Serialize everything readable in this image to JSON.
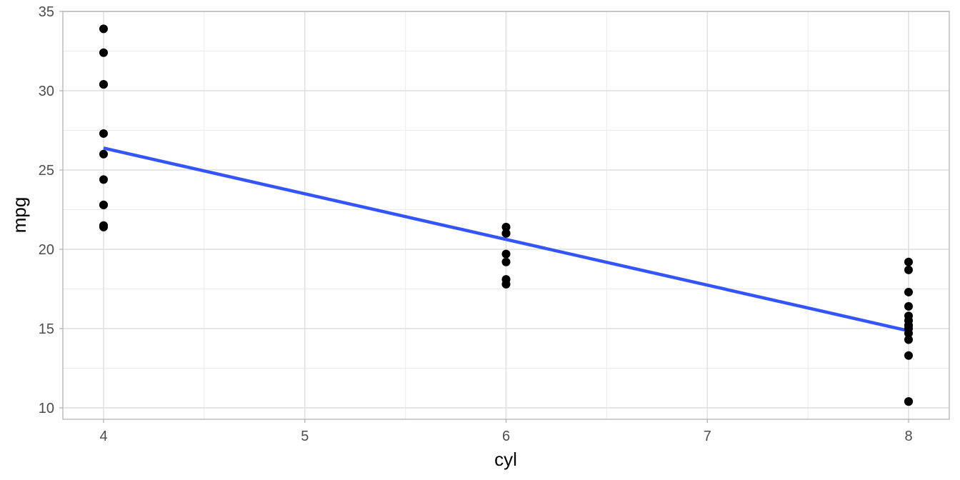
{
  "chart_data": {
    "type": "scatter",
    "title": "",
    "xlabel": "cyl",
    "ylabel": "mpg",
    "xlim": [
      3.8,
      8.2
    ],
    "ylim": [
      9.2,
      35.1
    ],
    "x_ticks": [
      4,
      5,
      6,
      7,
      8
    ],
    "y_ticks": [
      10,
      15,
      20,
      25,
      30,
      35
    ],
    "grid": true,
    "legend": "none",
    "theme": "light",
    "points": [
      {
        "x": 4,
        "y": 33.9
      },
      {
        "x": 4,
        "y": 32.4
      },
      {
        "x": 4,
        "y": 30.4
      },
      {
        "x": 4,
        "y": 30.4
      },
      {
        "x": 4,
        "y": 27.3
      },
      {
        "x": 4,
        "y": 26.0
      },
      {
        "x": 4,
        "y": 24.4
      },
      {
        "x": 4,
        "y": 22.8
      },
      {
        "x": 4,
        "y": 22.8
      },
      {
        "x": 4,
        "y": 21.5
      },
      {
        "x": 4,
        "y": 21.4
      },
      {
        "x": 6,
        "y": 21.4
      },
      {
        "x": 6,
        "y": 21.0
      },
      {
        "x": 6,
        "y": 21.0
      },
      {
        "x": 6,
        "y": 19.7
      },
      {
        "x": 6,
        "y": 19.2
      },
      {
        "x": 6,
        "y": 18.1
      },
      {
        "x": 6,
        "y": 17.8
      },
      {
        "x": 8,
        "y": 19.2
      },
      {
        "x": 8,
        "y": 18.7
      },
      {
        "x": 8,
        "y": 17.3
      },
      {
        "x": 8,
        "y": 16.4
      },
      {
        "x": 8,
        "y": 15.8
      },
      {
        "x": 8,
        "y": 15.5
      },
      {
        "x": 8,
        "y": 15.2
      },
      {
        "x": 8,
        "y": 15.2
      },
      {
        "x": 8,
        "y": 15.0
      },
      {
        "x": 8,
        "y": 14.7
      },
      {
        "x": 8,
        "y": 14.3
      },
      {
        "x": 8,
        "y": 13.3
      },
      {
        "x": 8,
        "y": 10.4
      },
      {
        "x": 8,
        "y": 10.4
      }
    ],
    "fit_line": {
      "method": "lm",
      "color": "#3355ff",
      "x": [
        4,
        8
      ],
      "y": [
        26.38,
        14.86
      ]
    },
    "point_color": "#000000"
  }
}
